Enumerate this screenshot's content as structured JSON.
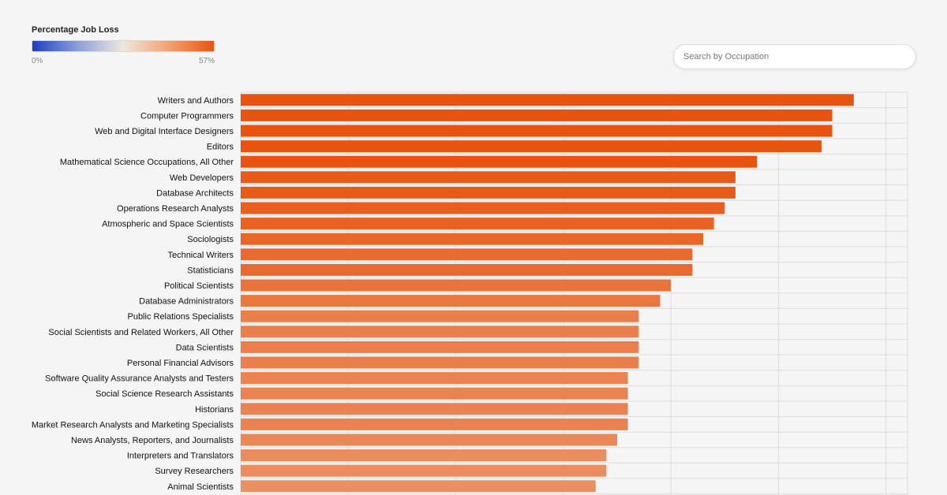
{
  "legend": {
    "title": "Percentage Job Loss",
    "min_label": "0%",
    "max_label": "57%",
    "gradient_colors": [
      "#1e3fc0",
      "#8d9fd8",
      "#eee8dc",
      "#f09a68",
      "#e85410"
    ]
  },
  "search": {
    "placeholder": "Search by Occupation",
    "value": ""
  },
  "chart_data": {
    "type": "bar",
    "orientation": "horizontal",
    "title": "Percentage Job Loss",
    "xlabel": "",
    "ylabel": "",
    "xlim": [
      0,
      62
    ],
    "grid": true,
    "categories": [
      "Writers and Authors",
      "Computer Programmers",
      "Web and Digital Interface Designers",
      "Editors",
      "Mathematical Science Occupations, All Other",
      "Web Developers",
      "Database Architects",
      "Operations Research Analysts",
      "Atmospheric and Space Scientists",
      "Sociologists",
      "Technical Writers",
      "Statisticians",
      "Political Scientists",
      "Database Administrators",
      "Public Relations Specialists",
      "Social Scientists and Related Workers, All Other",
      "Data Scientists",
      "Personal Financial Advisors",
      "Software Quality Assurance Analysts and Testers",
      "Social Science Research Assistants",
      "Historians",
      "Market Research Analysts and Marketing Specialists",
      "News Analysts, Reporters, and Journalists",
      "Interpreters and Translators",
      "Survey Researchers",
      "Animal Scientists"
    ],
    "values": [
      57,
      55,
      55,
      54,
      48,
      46,
      46,
      45,
      44,
      43,
      42,
      42,
      40,
      39,
      37,
      37,
      37,
      37,
      36,
      36,
      36,
      36,
      35,
      34,
      34,
      33
    ],
    "color_scale": {
      "min": 0,
      "max": 57,
      "low_color": "#eee8dc",
      "high_color": "#e85410"
    }
  }
}
